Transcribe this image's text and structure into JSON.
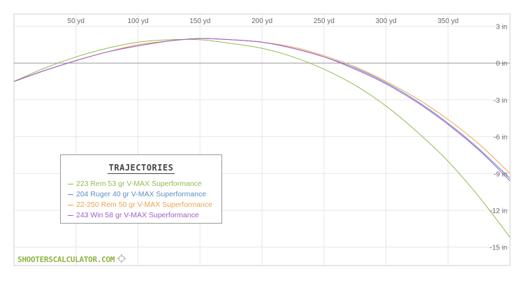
{
  "brand": {
    "text": "SHOOTERSCALCULATOR.COM",
    "icon": "crosshair-icon",
    "color": "#8fb545"
  },
  "legend": {
    "title": "TRAJECTORIES"
  },
  "chart_data": {
    "type": "line",
    "title": "",
    "xlabel": "",
    "ylabel": "",
    "xlim": [
      0,
      400
    ],
    "ylim": [
      -16.5,
      4
    ],
    "grid": true,
    "legend_placement": "bottom-left",
    "x_ticks": [
      50,
      100,
      150,
      200,
      250,
      300,
      350
    ],
    "x_tick_labels": [
      "50 yd",
      "100 yd",
      "150 yd",
      "200 yd",
      "250 yd",
      "300 yd",
      "350 yd"
    ],
    "y_ticks": [
      3,
      0,
      -3,
      -6,
      -9,
      -12,
      -15
    ],
    "y_tick_labels": [
      "3 in",
      "0 in",
      "-3 in",
      "-6 in",
      "-9 in",
      "-12 in",
      "-15 in"
    ],
    "x": [
      0,
      25,
      50,
      75,
      100,
      125,
      150,
      175,
      200,
      225,
      250,
      275,
      300,
      325,
      350,
      375,
      400
    ],
    "series": [
      {
        "name": "223 Rem 53 gr V-MAX Superformance",
        "color": "#8fbb4f",
        "values": [
          -1.5,
          -0.4,
          0.5,
          1.2,
          1.7,
          1.9,
          1.9,
          1.6,
          1.2,
          0.5,
          -0.5,
          -1.8,
          -3.5,
          -5.6,
          -8.0,
          -10.9,
          -14.2
        ]
      },
      {
        "name": "204 Ruger 40 gr V-MAX Superformance",
        "color": "#5b8fc6",
        "values": [
          -1.5,
          -0.6,
          0.2,
          0.9,
          1.4,
          1.8,
          2.0,
          1.9,
          1.7,
          1.2,
          0.5,
          -0.4,
          -1.6,
          -3.1,
          -4.9,
          -7.0,
          -9.4
        ]
      },
      {
        "name": "22-250 Rem 50 gr V-MAX Superformance",
        "color": "#f0a050",
        "values": [
          -1.5,
          -0.6,
          0.2,
          0.9,
          1.5,
          1.8,
          2.0,
          1.9,
          1.7,
          1.3,
          0.6,
          -0.3,
          -1.5,
          -2.9,
          -4.6,
          -6.6,
          -9.0
        ]
      },
      {
        "name": "243 Win 58 gr V-MAX Superformance",
        "color": "#a35bc9",
        "values": [
          -1.5,
          -0.6,
          0.2,
          0.9,
          1.4,
          1.8,
          2.0,
          1.9,
          1.7,
          1.2,
          0.5,
          -0.5,
          -1.7,
          -3.2,
          -5.0,
          -7.1,
          -9.6
        ]
      }
    ]
  }
}
